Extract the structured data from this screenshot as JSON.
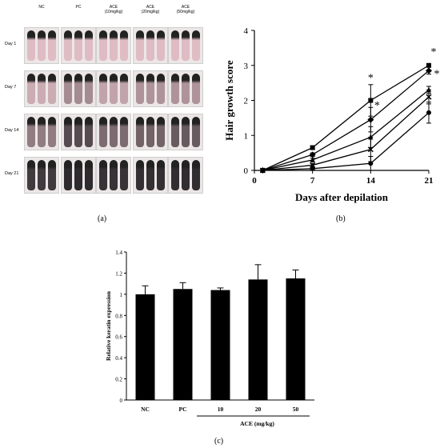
{
  "panel_labels": {
    "a": "(a)",
    "b": "(b)",
    "c": "(c)"
  },
  "photo_panel": {
    "columns": [
      {
        "line1": "NC",
        "line2": ""
      },
      {
        "line1": "PC",
        "line2": ""
      },
      {
        "line1": "ACE",
        "line2": "(10mg/kg)"
      },
      {
        "line1": "ACE",
        "line2": "(20mg/kg)"
      },
      {
        "line1": "ACE",
        "line2": "(50mg/kg)"
      }
    ],
    "rows": [
      "Day 1",
      "Day 7",
      "Day 14",
      "Day 21"
    ],
    "hair_levels": [
      [
        0.05,
        0.05,
        0.05,
        0.05,
        0.05
      ],
      [
        0.15,
        0.35,
        0.2,
        0.3,
        0.3
      ],
      [
        0.45,
        0.75,
        0.55,
        0.6,
        0.65
      ],
      [
        0.85,
        0.95,
        0.9,
        0.92,
        0.93
      ]
    ]
  },
  "chart_data": [
    {
      "type": "line",
      "xlabel": "Days after depilation",
      "ylabel": "Hair growth score",
      "x": [
        1,
        7,
        14,
        21
      ],
      "xticks": [
        0,
        7,
        14,
        21
      ],
      "yticks": [
        0,
        1,
        2,
        3,
        4
      ],
      "xlim": [
        0,
        21
      ],
      "ylim": [
        0,
        4
      ],
      "series": [
        {
          "values": [
            0,
            0.65,
            2.0,
            3.0
          ],
          "err": [
            0,
            0.05,
            0.45,
            0.05
          ],
          "marker": "square"
        },
        {
          "values": [
            0,
            0.45,
            1.45,
            2.85
          ],
          "err": [
            0,
            0.05,
            0.35,
            0.1
          ],
          "marker": "diamond"
        },
        {
          "values": [
            0,
            0.3,
            0.95,
            2.3
          ],
          "err": [
            0,
            0.05,
            0.3,
            0.1
          ],
          "marker": "triangle"
        },
        {
          "values": [
            0,
            0.15,
            0.6,
            2.1
          ],
          "err": [
            0,
            0.05,
            0.35,
            0.2
          ],
          "marker": "x"
        },
        {
          "values": [
            0,
            0.05,
            0.2,
            1.65
          ],
          "err": [
            0,
            0.03,
            0.2,
            0.3
          ],
          "marker": "circle"
        }
      ],
      "annotations": [
        {
          "x": 14,
          "y": 2.5,
          "text": "*"
        },
        {
          "x": 14,
          "y": 1.85,
          "text": "*"
        },
        {
          "x": 21,
          "y": 3.25,
          "text": "*"
        },
        {
          "x": 21,
          "y": 2.75,
          "text": "*"
        }
      ]
    },
    {
      "type": "bar",
      "ylabel": "Relative keratin expression",
      "categories": [
        "NC",
        "PC",
        "10",
        "20",
        "50"
      ],
      "values": [
        1.0,
        1.05,
        1.04,
        1.14,
        1.15
      ],
      "err": [
        0.08,
        0.06,
        0.02,
        0.14,
        0.08
      ],
      "yticks": [
        "0",
        "0.2",
        "0.4",
        "0.6",
        "0.8",
        "1",
        "1.2",
        "1.4"
      ],
      "ylim": [
        0,
        1.4
      ],
      "group_label": "ACE (mg/kg)"
    }
  ]
}
